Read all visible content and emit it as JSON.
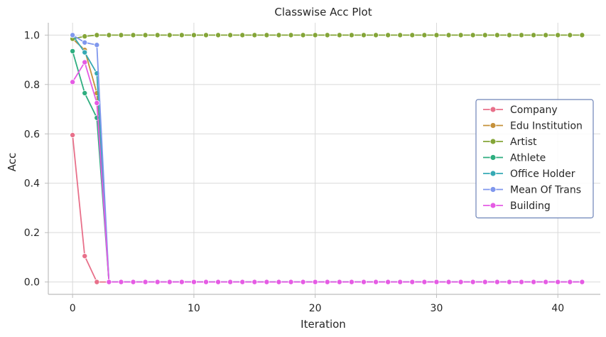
{
  "chart_data": {
    "type": "line",
    "title": "Classwise Acc Plot",
    "xlabel": "Iteration",
    "ylabel": "Acc",
    "xlim": [
      -2,
      43.5
    ],
    "ylim": [
      -0.05,
      1.05
    ],
    "xticks": [
      0,
      10,
      20,
      30,
      40
    ],
    "xtick_labels": [
      "0",
      "10",
      "20",
      "30",
      "40"
    ],
    "yticks": [
      0.0,
      0.2,
      0.4,
      0.6,
      0.8,
      1.0
    ],
    "ytick_labels": [
      "0.0",
      "0.2",
      "0.4",
      "0.6",
      "0.8",
      "1.0"
    ],
    "grid": true,
    "legend_position": "center-right",
    "x": [
      0,
      1,
      2,
      3,
      4,
      5,
      6,
      7,
      8,
      9,
      10,
      11,
      12,
      13,
      14,
      15,
      16,
      17,
      18,
      19,
      20,
      21,
      22,
      23,
      24,
      25,
      26,
      27,
      28,
      29,
      30,
      31,
      32,
      33,
      34,
      35,
      36,
      37,
      38,
      39,
      40,
      41,
      42
    ],
    "series": [
      {
        "name": "Company",
        "color": "#e8708a",
        "head": [
          0.595,
          0.105,
          0.0,
          0.0
        ],
        "tail": 0.0
      },
      {
        "name": "Edu Institution",
        "color": "#c5913a",
        "head": [
          0.985,
          0.94,
          0.765,
          0.0
        ],
        "tail": 0.0
      },
      {
        "name": "Artist",
        "color": "#84a537",
        "head": [
          0.985,
          0.995,
          1.0,
          1.0
        ],
        "tail": 1.0
      },
      {
        "name": "Athlete",
        "color": "#2eae7f",
        "head": [
          0.935,
          0.765,
          0.665,
          0.0
        ],
        "tail": 0.0
      },
      {
        "name": "Office Holder",
        "color": "#35a9b4",
        "head": [
          1.0,
          0.93,
          0.845,
          0.0
        ],
        "tail": 0.0
      },
      {
        "name": "Mean Of Trans",
        "color": "#7f97ed",
        "head": [
          1.0,
          0.97,
          0.96,
          0.0
        ],
        "tail": 0.0
      },
      {
        "name": "Building",
        "color": "#e55be4",
        "head": [
          0.81,
          0.89,
          0.725,
          0.0
        ],
        "tail": 0.0
      }
    ]
  }
}
